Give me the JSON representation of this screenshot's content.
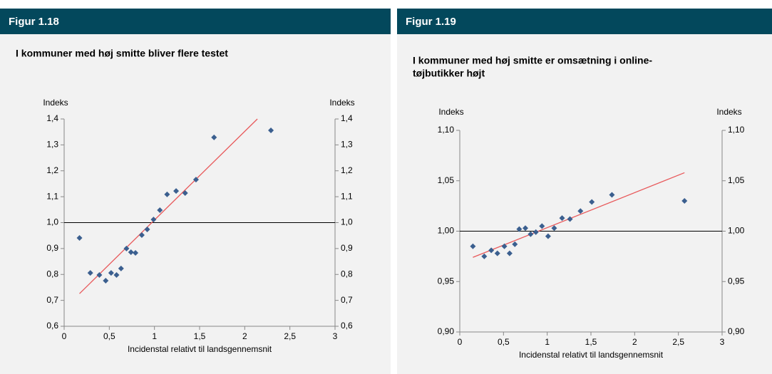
{
  "chart_data": [
    {
      "type": "scatter",
      "figure": "Figur 1.18",
      "title": [
        "I kommuner med høj smitte bliver flere testet"
      ],
      "y_label": "Indeks",
      "y2_label": "Indeks",
      "x_label": "Incidenstal relativt til landsgennemsnit",
      "x": [
        0.17,
        0.29,
        0.39,
        0.46,
        0.52,
        0.58,
        0.63,
        0.69,
        0.74,
        0.79,
        0.86,
        0.92,
        0.99,
        1.06,
        1.14,
        1.24,
        1.34,
        1.46,
        1.66,
        2.29
      ],
      "values": [
        0.941,
        0.806,
        0.798,
        0.776,
        0.806,
        0.798,
        0.823,
        0.9,
        0.886,
        0.883,
        0.952,
        0.974,
        1.012,
        1.048,
        1.109,
        1.122,
        1.114,
        1.166,
        1.329,
        1.356
      ],
      "color": "#3b5f8f",
      "trendline": {
        "x": [
          0.17,
          2.14
        ],
        "y": [
          0.726,
          1.4
        ],
        "color": "#e8595b"
      },
      "hline": 1,
      "xlim": [
        0,
        3
      ],
      "xticks": [
        0,
        {
          "value": 0.5,
          "label": "0,5"
        },
        1,
        {
          "value": 1.5,
          "label": "1,5"
        },
        2,
        {
          "value": 2.5,
          "label": "2,5"
        },
        3
      ],
      "ylim": [
        0.6,
        1.4
      ],
      "yticks": [
        {
          "value": 0.6,
          "label": "0,6"
        },
        {
          "value": 0.7,
          "label": "0,7"
        },
        {
          "value": 0.8,
          "label": "0,8"
        },
        {
          "value": 0.9,
          "label": "0,9"
        },
        {
          "value": 1.0,
          "label": "1,0"
        },
        {
          "value": 1.1,
          "label": "1,1"
        },
        {
          "value": 1.2,
          "label": "1,2"
        },
        {
          "value": 1.3,
          "label": "1,3"
        },
        {
          "value": 1.4,
          "label": "1,4"
        }
      ],
      "y2lim": [
        0.6,
        1.4
      ],
      "y2ticks": [
        {
          "value": 0.6,
          "label": "0,6"
        },
        {
          "value": 0.7,
          "label": "0,7"
        },
        {
          "value": 0.8,
          "label": "0,8"
        },
        {
          "value": 0.9,
          "label": "0,9"
        },
        {
          "value": 1.0,
          "label": "1,0"
        },
        {
          "value": 1.1,
          "label": "1,1"
        },
        {
          "value": 1.2,
          "label": "1,2"
        },
        {
          "value": 1.3,
          "label": "1,3"
        },
        {
          "value": 1.4,
          "label": "1,4"
        }
      ]
    },
    {
      "type": "scatter",
      "figure": "Figur 1.19",
      "title": [
        "I kommuner med høj smitte er omsætning i online-",
        "tøjbutikker højt"
      ],
      "y_label": "Indeks",
      "y2_label": "Indeks",
      "x_label": "Incidenstal relativt til landsgennemsnit",
      "x": [
        0.15,
        0.28,
        0.36,
        0.43,
        0.51,
        0.57,
        0.63,
        0.68,
        0.75,
        0.81,
        0.87,
        0.94,
        1.01,
        1.08,
        1.17,
        1.26,
        1.38,
        1.51,
        1.74,
        2.57
      ],
      "values": [
        0.985,
        0.975,
        0.981,
        0.978,
        0.985,
        0.978,
        0.987,
        1.002,
        1.003,
        0.997,
        0.999,
        1.005,
        0.995,
        1.003,
        1.013,
        1.012,
        1.02,
        1.029,
        1.036,
        1.03
      ],
      "color": "#3b5f8f",
      "trendline": {
        "x": [
          0.15,
          2.57
        ],
        "y": [
          0.974,
          1.058
        ],
        "color": "#e8595b"
      },
      "hline": 1,
      "xlim": [
        0,
        3
      ],
      "xticks": [
        0,
        {
          "value": 0.5,
          "label": "0,5"
        },
        1,
        {
          "value": 1.5,
          "label": "1,5"
        },
        2,
        {
          "value": 2.5,
          "label": "2,5"
        },
        3
      ],
      "ylim": [
        0.9,
        1.1
      ],
      "yticks": [
        {
          "value": 0.9,
          "label": "0,90"
        },
        {
          "value": 0.95,
          "label": "0,95"
        },
        {
          "value": 1.0,
          "label": "1,00"
        },
        {
          "value": 1.05,
          "label": "1,05"
        },
        {
          "value": 1.1,
          "label": "1,10"
        }
      ],
      "y2lim": [
        0.9,
        1.1
      ],
      "y2ticks": [
        {
          "value": 0.9,
          "label": "0,90"
        },
        {
          "value": 0.95,
          "label": "0,95"
        },
        {
          "value": 1.0,
          "label": "1,00"
        },
        {
          "value": 1.05,
          "label": "1,05"
        },
        {
          "value": 1.1,
          "label": "1,10"
        }
      ]
    }
  ]
}
